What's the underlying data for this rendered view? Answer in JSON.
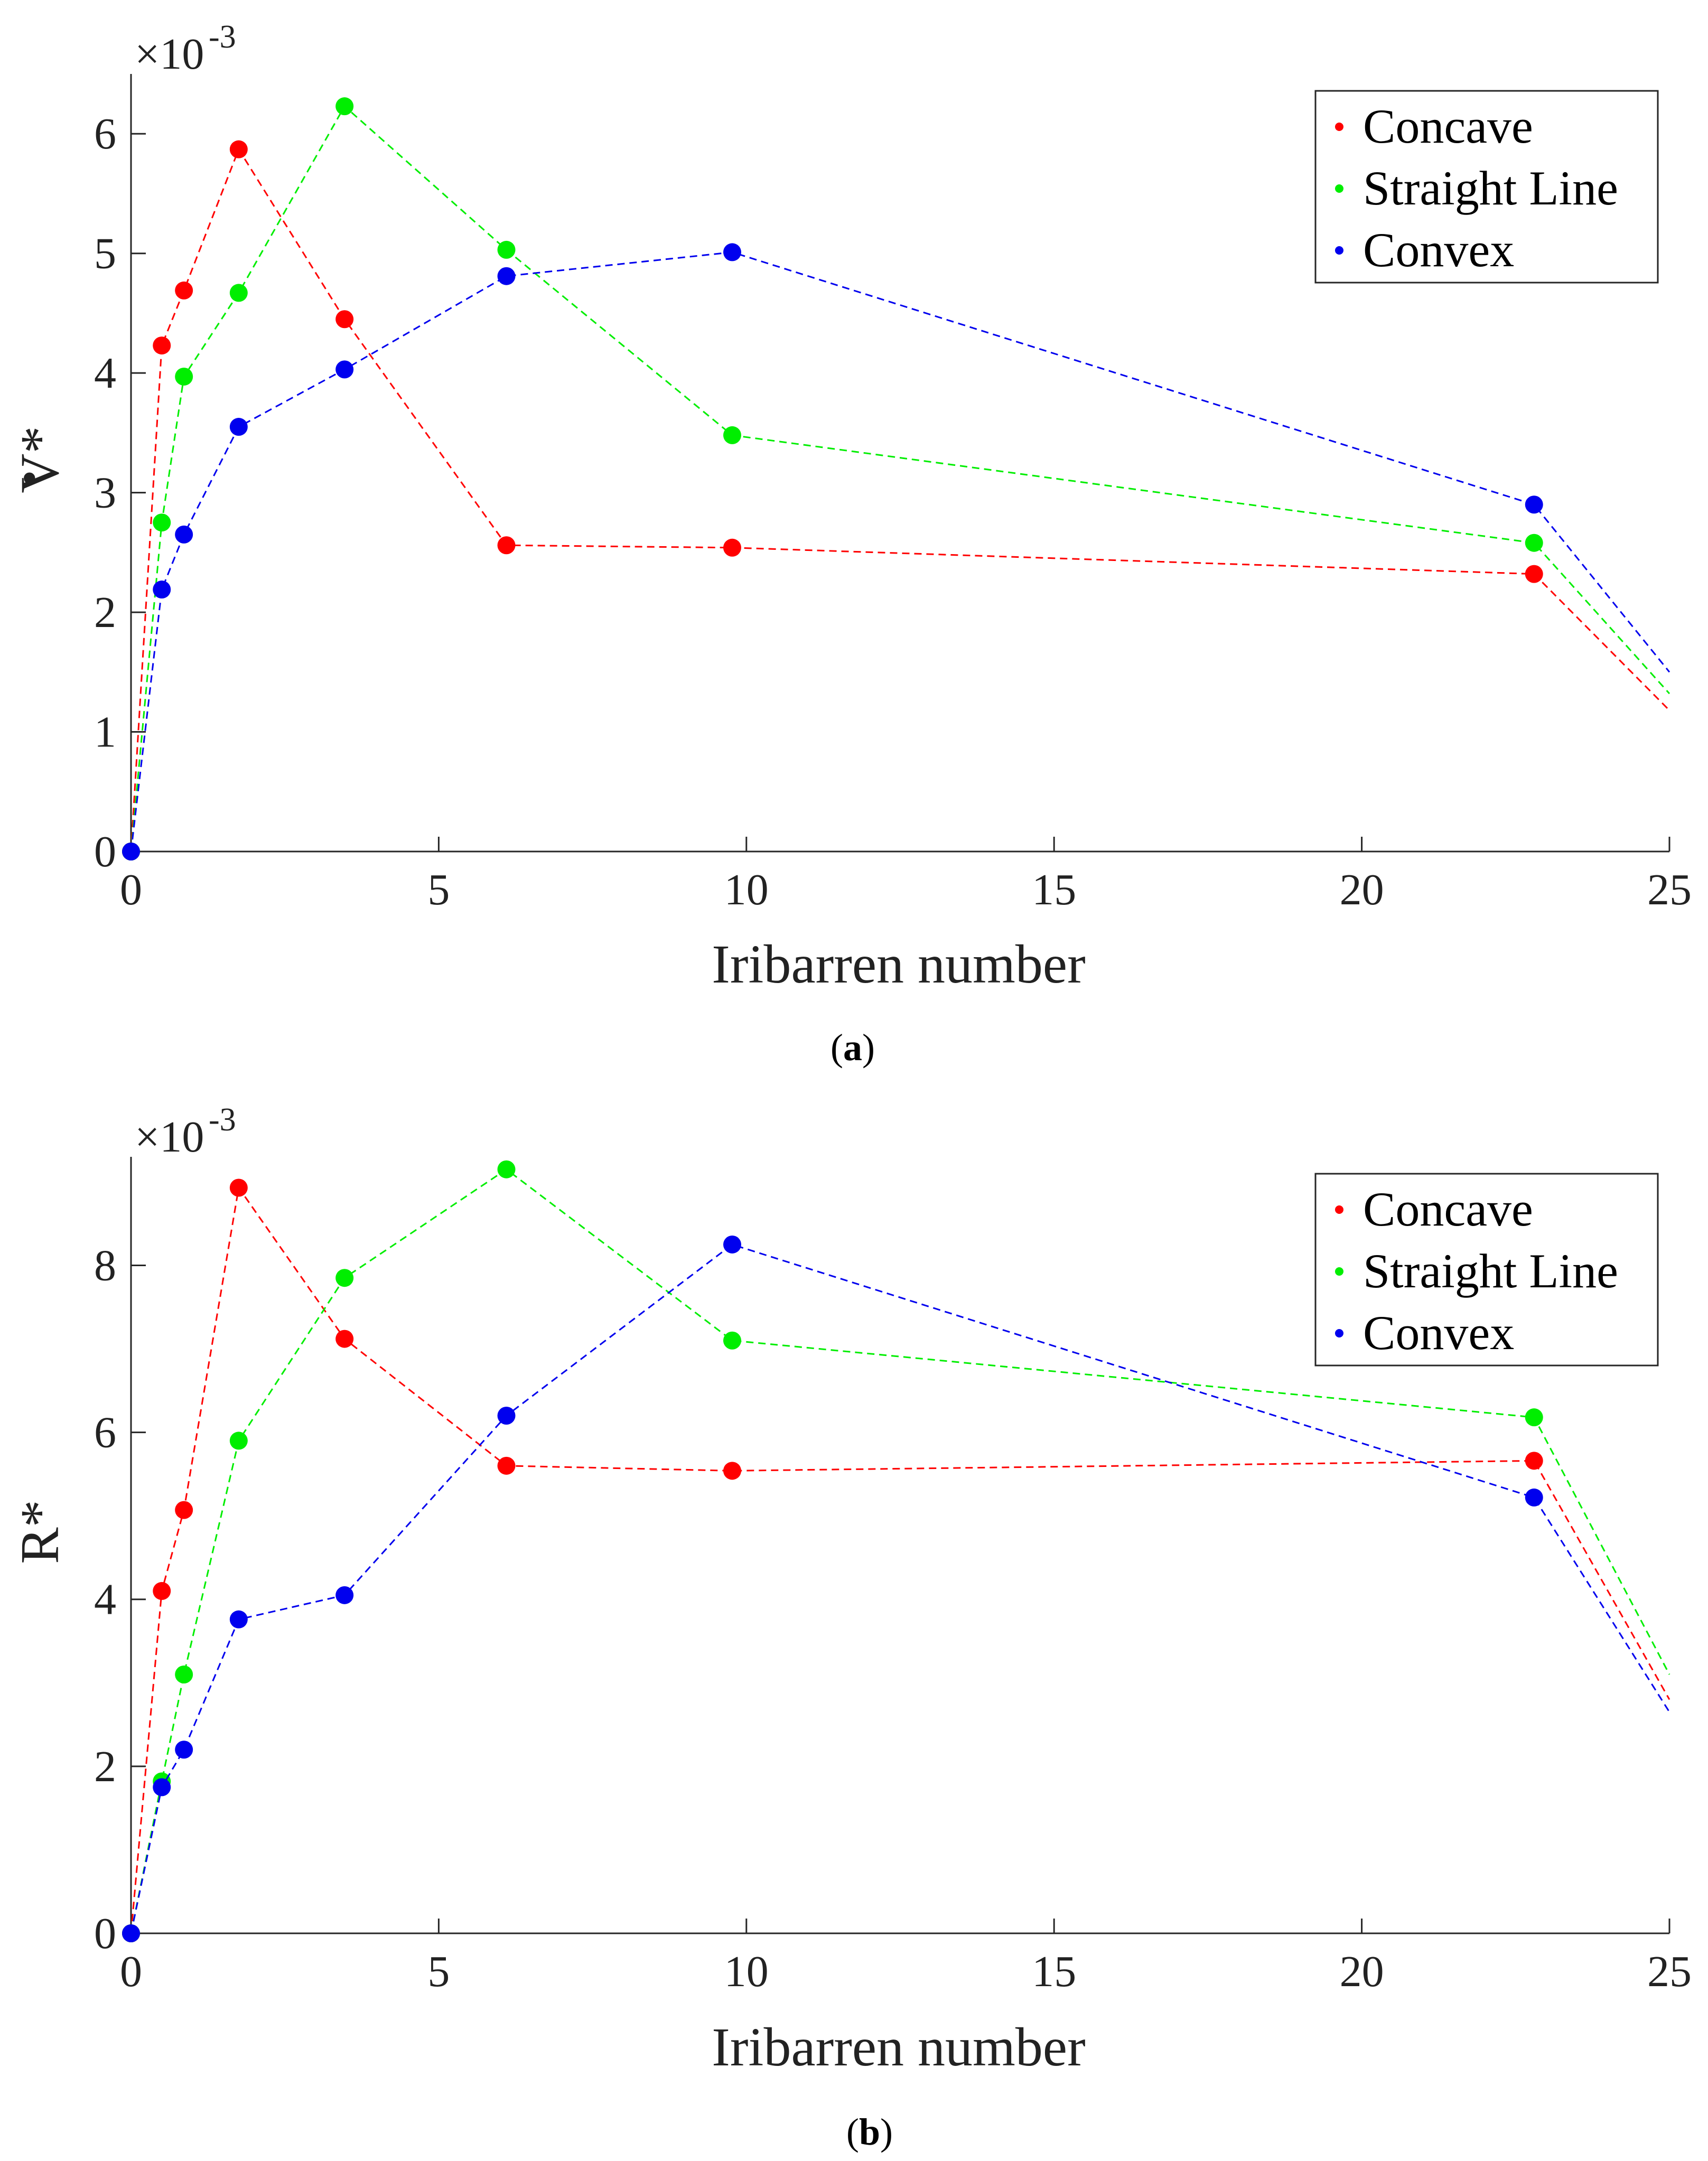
{
  "chart_data": [
    {
      "type": "line",
      "panel": "a",
      "caption_open": "(",
      "caption_letter": "a",
      "caption_close": ")",
      "xlabel": "Iribarren number",
      "ylabel": "V*",
      "ylabel_dot": "•",
      "exponent_label": "×10",
      "exponent_power": "-3",
      "xlim": [
        0,
        25
      ],
      "ylim": [
        0,
        6.5
      ],
      "xticks": [
        0,
        5,
        10,
        15,
        20,
        25
      ],
      "yticks": [
        0,
        1,
        2,
        3,
        4,
        5,
        6
      ],
      "legend_position": "top-right",
      "series": [
        {
          "name": "Concave",
          "color": "#ff0000",
          "x": [
            0,
            0.5,
            0.86,
            1.75,
            3.47,
            6.1,
            9.77,
            22.8
          ],
          "y": [
            0,
            4.23,
            4.69,
            5.87,
            4.45,
            2.56,
            2.54,
            2.32
          ],
          "tail": [
            25,
            1.18
          ]
        },
        {
          "name": "Straight Line",
          "color": "#00ee00",
          "x": [
            0,
            0.5,
            0.86,
            1.75,
            3.47,
            6.1,
            9.77,
            22.8
          ],
          "y": [
            0,
            2.75,
            3.97,
            4.67,
            6.23,
            5.03,
            3.48,
            2.58
          ],
          "tail": [
            25,
            1.32
          ]
        },
        {
          "name": "Convex",
          "color": "#0000ee",
          "x": [
            0,
            0.5,
            0.86,
            1.75,
            3.47,
            6.1,
            9.77,
            22.8
          ],
          "y": [
            0,
            2.19,
            2.65,
            3.55,
            4.03,
            4.81,
            5.01,
            2.9
          ],
          "tail": [
            25,
            1.5
          ]
        }
      ]
    },
    {
      "type": "line",
      "panel": "b",
      "caption_open": "(",
      "caption_letter": "b",
      "caption_close": ")",
      "xlabel": "Iribarren number",
      "ylabel": "R*",
      "ylabel_dot": "",
      "exponent_label": "×10",
      "exponent_power": "-3",
      "xlim": [
        0,
        25
      ],
      "ylim": [
        0,
        9.3
      ],
      "xticks": [
        0,
        5,
        10,
        15,
        20,
        25
      ],
      "yticks": [
        0,
        2,
        4,
        6,
        8
      ],
      "legend_position": "top-right",
      "series": [
        {
          "name": "Concave",
          "color": "#ff0000",
          "x": [
            0,
            0.5,
            0.86,
            1.75,
            3.47,
            6.1,
            9.77,
            22.8
          ],
          "y": [
            0,
            4.1,
            5.07,
            8.93,
            7.12,
            5.6,
            5.54,
            5.66
          ],
          "tail": [
            25,
            2.8
          ]
        },
        {
          "name": "Straight Line",
          "color": "#00ee00",
          "x": [
            0,
            0.5,
            0.86,
            1.75,
            3.47,
            6.1,
            9.77,
            22.8
          ],
          "y": [
            0,
            1.82,
            3.1,
            5.9,
            7.85,
            9.15,
            7.1,
            6.18
          ],
          "tail": [
            25,
            3.1
          ]
        },
        {
          "name": "Convex",
          "color": "#0000ee",
          "x": [
            0,
            0.5,
            0.86,
            1.75,
            3.47,
            6.1,
            9.77,
            22.8
          ],
          "y": [
            0,
            1.75,
            2.2,
            3.76,
            4.05,
            6.2,
            8.25,
            5.22
          ],
          "tail": [
            25,
            2.65
          ]
        }
      ]
    }
  ]
}
